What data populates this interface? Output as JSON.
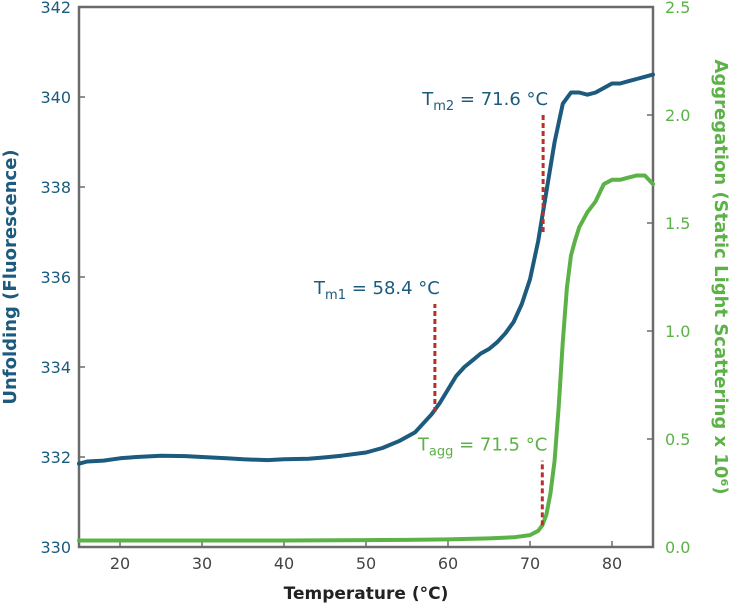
{
  "chart_data": {
    "type": "line",
    "xlabel": "Temperature (°C)",
    "ylabel_left": "Unfolding (Fluorescence)",
    "ylabel_right": "Aggregation (Static Light Scattering x 10⁶)",
    "xlim": [
      15,
      85
    ],
    "ylim_left": [
      330,
      342
    ],
    "ylim_right": [
      0,
      2.5
    ],
    "x_ticks": [
      20,
      30,
      40,
      50,
      60,
      70,
      80
    ],
    "y_left_ticks": [
      330,
      332,
      334,
      336,
      338,
      340,
      342
    ],
    "y_right_ticks": [
      "0.0",
      "0.5",
      "1.0",
      "1.5",
      "2.0",
      "2.5"
    ],
    "grid": false,
    "colors": {
      "unfolding": "#1c5a7e",
      "aggregation": "#5cb247",
      "marker": "#b5322a"
    },
    "series": [
      {
        "axis": "left",
        "x": [
          15,
          16,
          18,
          20,
          22,
          25,
          28,
          30,
          33,
          35,
          38,
          40,
          43,
          45,
          47,
          50,
          52,
          54,
          56,
          58,
          59,
          60,
          61,
          62,
          63,
          64,
          65,
          66,
          67,
          68,
          69,
          70,
          71,
          72,
          73,
          74,
          75,
          76,
          77,
          78,
          79,
          80,
          81,
          82,
          83,
          84,
          85
        ],
        "values": [
          331.85,
          331.9,
          331.92,
          331.97,
          332.0,
          332.03,
          332.02,
          332.0,
          331.97,
          331.95,
          331.93,
          331.95,
          331.96,
          331.99,
          332.03,
          332.1,
          332.2,
          332.35,
          332.55,
          332.95,
          333.2,
          333.5,
          333.8,
          334.0,
          334.15,
          334.3,
          334.4,
          334.55,
          334.75,
          335.0,
          335.4,
          335.95,
          336.8,
          337.9,
          339.0,
          339.85,
          340.1,
          340.1,
          340.05,
          340.1,
          340.2,
          340.3,
          340.3,
          340.35,
          340.4,
          340.45,
          340.5
        ]
      },
      {
        "axis": "right",
        "x": [
          15,
          20,
          30,
          40,
          50,
          55,
          60,
          65,
          68,
          70,
          71,
          71.5,
          72,
          72.5,
          73,
          73.5,
          74,
          74.5,
          75,
          75.5,
          76,
          77,
          78,
          79,
          80,
          81,
          82,
          83,
          84,
          85
        ],
        "values": [
          0.03,
          0.03,
          0.03,
          0.03,
          0.032,
          0.033,
          0.035,
          0.04,
          0.045,
          0.055,
          0.075,
          0.1,
          0.15,
          0.25,
          0.4,
          0.65,
          0.95,
          1.2,
          1.35,
          1.42,
          1.48,
          1.55,
          1.6,
          1.68,
          1.7,
          1.7,
          1.71,
          1.72,
          1.72,
          1.68
        ]
      }
    ],
    "annotations": [
      {
        "main": "T",
        "sub": "m1",
        "rest": " = 58.4 °C",
        "x": 58.4,
        "y_from": 333.0,
        "y_to": 335.4,
        "axis": "left",
        "color": "#1c5a7e"
      },
      {
        "main": "T",
        "sub": "m2",
        "rest": " = 71.6 °C",
        "x": 71.6,
        "y_from": 337.0,
        "y_to": 339.6,
        "axis": "left",
        "color": "#1c5a7e"
      },
      {
        "main": "T",
        "sub": "agg",
        "rest": " = 71.5 °C",
        "x": 71.5,
        "y_from": 0.1,
        "y_to": 0.4,
        "axis": "right",
        "color": "#5cb247"
      }
    ]
  }
}
